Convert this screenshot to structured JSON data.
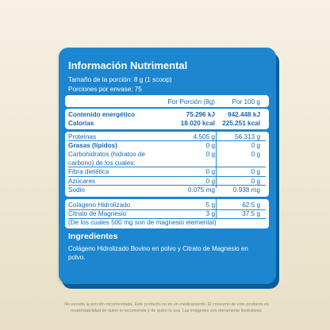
{
  "title": "Información Nutrimental",
  "serving_size": "Tamaño de la porción: 8 g (1 scoop)",
  "servings": "Porciones por envase: 75",
  "table": {
    "col_portion": "Por Porción (8g)",
    "col_100g": "Por 100 g",
    "energy_label": "Contenido energético",
    "energy_portion": "75.296 kJ",
    "energy_100g": "942.448 kJ",
    "calories_label": "Calorías",
    "calories_portion": "18.020 kcal",
    "calories_100g": "225.251 kcal",
    "protein_label": "Proteínas",
    "protein_portion": "4.505 g",
    "protein_100g": "56.313 g",
    "fat_label": "Grasas (lípidos)",
    "fat_portion": "0 g",
    "fat_100g": "0 g",
    "carbs_label_1": "Carbohidratos (hidratos de",
    "carbs_label_2": "carbono) de los cuales:",
    "carbs_portion": "0 g",
    "carbs_100g": "0 g",
    "fiber_label": "Fibra dietética",
    "fiber_portion": "0 g",
    "fiber_100g": "0 g",
    "sugar_label": "Azúcares",
    "sugar_portion": "0 g",
    "sugar_100g": "0 g",
    "sodium_label": "Sodio",
    "sodium_portion": "0.075 mg",
    "sodium_100g": "0.938 mg",
    "collagen_label": "Colágeno Hidrolizado",
    "collagen_portion": "5 g",
    "collagen_100g": "62.5 g",
    "mg_label": "Citrato de Magnesio",
    "mg_portion": "3 g",
    "mg_100g": "37.5 g",
    "mg_note": "(De los cuales 500 mg son de magnesio elemental)"
  },
  "ingredients_title": "Ingredientes",
  "ingredients_text": "Colágeno Hidrolizado Bovino en polvo y Citrato de Magnesio en polvo.",
  "footer_line1": "No exceda la porción recomendada. Este producto no es un medicamento. El consumo de este producto es",
  "footer_line2": "responsabilidad de quien lo recomienda y de quien lo usa. Las imágenes son meramente ilustrativas."
}
